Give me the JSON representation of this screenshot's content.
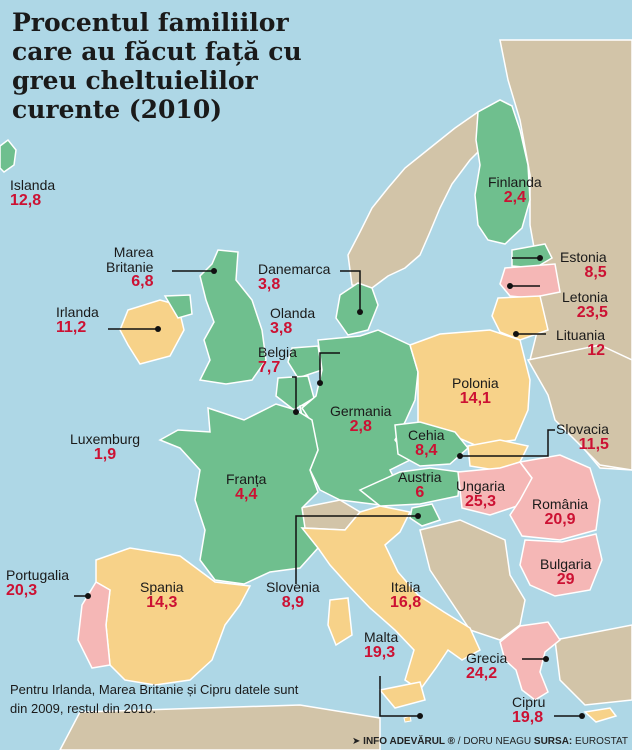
{
  "title_lines": [
    "Procentul familiilor",
    "care au făcut față cu",
    "greu cheltuielilor",
    "curente (2010)"
  ],
  "countries": {
    "islanda": {
      "name": "Islanda",
      "value": "12,8",
      "level": "green"
    },
    "finlanda": {
      "name": "Finlanda",
      "value": "2,4",
      "level": "green"
    },
    "estonia": {
      "name": "Estonia",
      "value": "8,5",
      "level": "green"
    },
    "letonia": {
      "name": "Letonia",
      "value": "23,5",
      "level": "pink"
    },
    "lituania": {
      "name": "Lituania",
      "value": "12",
      "level": "yellow"
    },
    "marea_britanie": {
      "name_line1": "Marea",
      "name_line2": "Britanie",
      "value": "6,8",
      "level": "green"
    },
    "irlanda": {
      "name": "Irlanda",
      "value": "11,2",
      "level": "yellow"
    },
    "danemarca": {
      "name": "Danemarca",
      "value": "3,8",
      "level": "green"
    },
    "olanda": {
      "name": "Olanda",
      "value": "3,8",
      "level": "green"
    },
    "belgia": {
      "name": "Belgia",
      "value": "7,7",
      "level": "green"
    },
    "polonia": {
      "name": "Polonia",
      "value": "14,1",
      "level": "yellow"
    },
    "germania": {
      "name": "Germania",
      "value": "2,8",
      "level": "green"
    },
    "luxemburg": {
      "name": "Luxemburg",
      "value": "1,9",
      "level": "green"
    },
    "cehia": {
      "name": "Cehia",
      "value": "8,4",
      "level": "green"
    },
    "slovacia": {
      "name": "Slovacia",
      "value": "11,5",
      "level": "yellow"
    },
    "austria": {
      "name": "Austria",
      "value": "6",
      "level": "green"
    },
    "franta": {
      "name": "Franța",
      "value": "4,4",
      "level": "green"
    },
    "ungaria": {
      "name": "Ungaria",
      "value": "25,3",
      "level": "pink"
    },
    "romania": {
      "name": "România",
      "value": "20,9",
      "level": "pink"
    },
    "portugalia": {
      "name": "Portugalia",
      "value": "20,3",
      "level": "pink"
    },
    "spania": {
      "name": "Spania",
      "value": "14,3",
      "level": "yellow"
    },
    "slovenia": {
      "name": "Slovenia",
      "value": "8,9",
      "level": "green"
    },
    "italia": {
      "name": "Italia",
      "value": "16,8",
      "level": "yellow"
    },
    "bulgaria": {
      "name": "Bulgaria",
      "value": "29",
      "level": "pink"
    },
    "malta": {
      "name": "Malta",
      "value": "19,3",
      "level": "yellow"
    },
    "grecia": {
      "name": "Grecia",
      "value": "24,2",
      "level": "pink"
    },
    "cipru": {
      "name": "Cipru",
      "value": "19,8",
      "level": "yellow"
    }
  },
  "note": "Pentru Irlanda, Marea Britanie și Cipru datele sunt din 2009, restul din 2010.",
  "credit": {
    "brand": "INFO ADEVĂRUL ®",
    "author": "/ DORU NEAGU",
    "source_label": "SURSA:",
    "source": "EUROSTAT"
  },
  "colors": {
    "sea": "#aed7e6",
    "green": "#6fbf8e",
    "yellow": "#f7d289",
    "pink": "#f5b7b6",
    "nodata": "#d2c4a8",
    "value_text": "#cc1133"
  }
}
